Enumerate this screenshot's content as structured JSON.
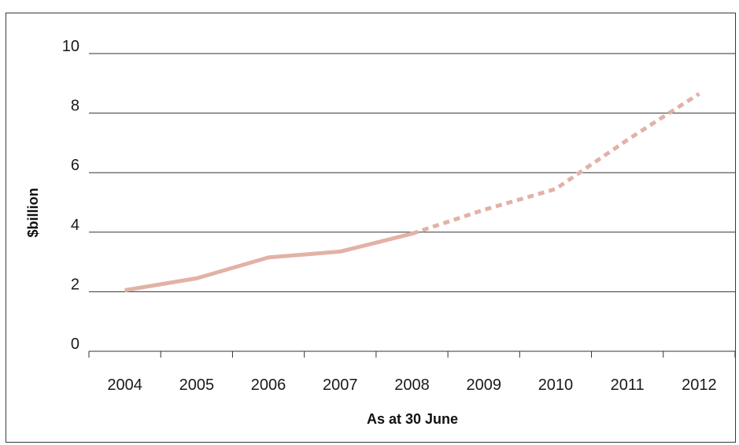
{
  "chart_data": {
    "type": "line",
    "title": "",
    "xlabel": "As at 30 June",
    "ylabel": "$billion",
    "categories": [
      "2004",
      "2005",
      "2006",
      "2007",
      "2008",
      "2009",
      "2010",
      "2011",
      "2012"
    ],
    "yticks": [
      "0",
      "2",
      "4",
      "6",
      "8",
      "10"
    ],
    "ylim": [
      0,
      10
    ],
    "grid": true,
    "series": [
      {
        "values": [
          2.05,
          2.45,
          3.15,
          3.35,
          3.95,
          4.75,
          5.45,
          7.1,
          8.65
        ],
        "actual_through": "2008",
        "projected_from": "2008",
        "color": "#e2b2a6"
      }
    ]
  }
}
